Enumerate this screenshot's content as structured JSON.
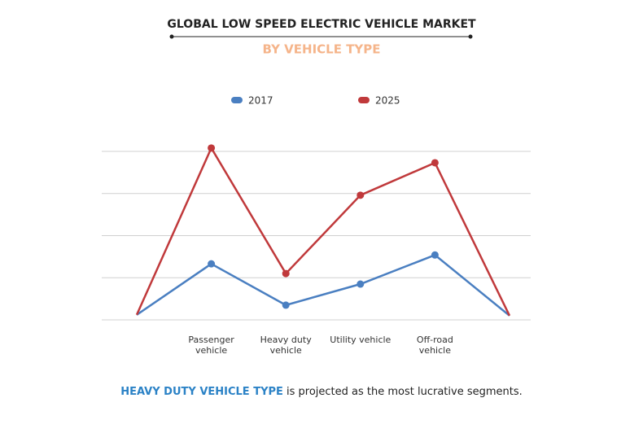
{
  "chart_data": {
    "type": "line",
    "title": "GLOBAL LOW SPEED ELECTRIC VEHICLE MARKET",
    "subtitle": "BY VEHICLE TYPE",
    "categories": [
      null,
      "Passenger vehicle",
      "Heavy duty vehicle",
      "Utility vehicle",
      "Off-road vehicle",
      null
    ],
    "series": [
      {
        "name": "2017",
        "color": "#4a7fc1",
        "values": [
          0.12,
          1.33,
          0.35,
          0.85,
          1.54,
          0.1
        ]
      },
      {
        "name": "2025",
        "color": "#c0393b",
        "values": [
          0.12,
          4.08,
          1.1,
          2.96,
          3.73,
          0.1
        ]
      }
    ],
    "ylim": [
      0,
      4
    ],
    "yticks": [
      0,
      1,
      2,
      3,
      4
    ],
    "grid": true,
    "legend": "top",
    "annotation": {
      "highlight": "HEAVY DUTY VEHICLE TYPE",
      "text": " is projected as the most lucrative segments."
    }
  }
}
